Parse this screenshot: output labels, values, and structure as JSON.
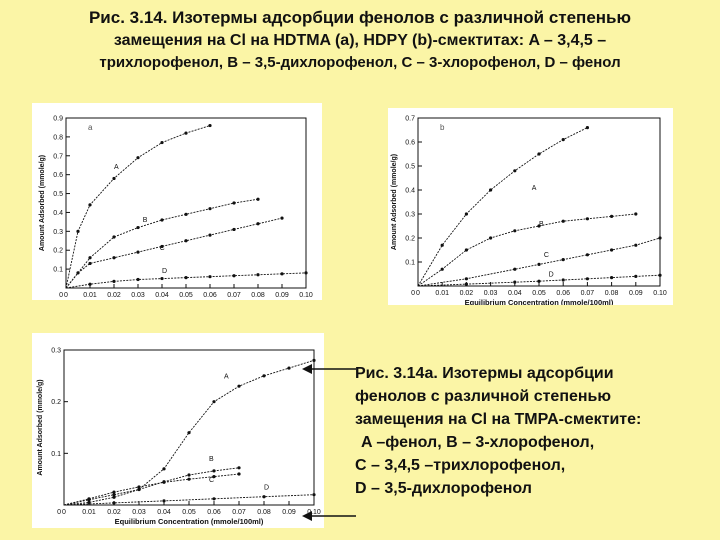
{
  "title": {
    "line1": "Рис. 3.14. Изотермы адсорбции фенолов с различной степенью",
    "line2": "замещения на Cl на HDTMA (a), HDPY (b)-смектитах: A – 3,4,5 –",
    "line3": "трихлорофенол, B – 3,5-дихлорофенол, C – 3-хлорофенол, D – фенол"
  },
  "caption": {
    "line1": "Рис. 3.14а. Изотермы адсорбции",
    "line2": "фенолов с различной степенью",
    "line3": "замещения на Cl на TMPA-смектите:",
    "line4": "A –фенол, B – 3-хлорофенол,",
    "line5": "C – 3,4,5 –трихлорофенол,",
    "line6": "D – 3,5-дихлорофенол"
  },
  "colors": {
    "background": "#fbf5a6",
    "panel": "#ffffff",
    "ink": "#111111"
  },
  "chart_data": [
    {
      "id": "a",
      "type": "line",
      "panel_label": "a",
      "xlabel": "Equilibrium Concentration (mmole/100ml)",
      "ylabel": "Amount Adsorbed (mmole/g)",
      "xlim": [
        0,
        0.1
      ],
      "ylim": [
        0,
        0.9
      ],
      "x_ticks": [
        "0",
        "0.01",
        "0.02",
        "0.03",
        "0.04",
        "0.05",
        "0.06",
        "0.07",
        "0.08",
        "0.09",
        "0.10"
      ],
      "y_ticks": [
        "0.1",
        "0.2",
        "0.3",
        "0.4",
        "0.5",
        "0.6",
        "0.7",
        "0.8",
        "0.9"
      ],
      "grid": false,
      "series": [
        {
          "name": "A",
          "x": [
            0,
            0.005,
            0.01,
            0.02,
            0.03,
            0.04,
            0.05,
            0.06
          ],
          "y": [
            0,
            0.3,
            0.44,
            0.58,
            0.69,
            0.77,
            0.82,
            0.86
          ],
          "label_at": [
            0.02,
            0.63
          ]
        },
        {
          "name": "B",
          "x": [
            0,
            0.01,
            0.02,
            0.03,
            0.04,
            0.05,
            0.06,
            0.07,
            0.08
          ],
          "y": [
            0,
            0.16,
            0.27,
            0.32,
            0.36,
            0.39,
            0.42,
            0.45,
            0.47
          ],
          "label_at": [
            0.032,
            0.35
          ]
        },
        {
          "name": "C",
          "x": [
            0,
            0.005,
            0.01,
            0.02,
            0.03,
            0.04,
            0.05,
            0.06,
            0.07,
            0.08,
            0.09
          ],
          "y": [
            0,
            0.08,
            0.13,
            0.16,
            0.19,
            0.22,
            0.25,
            0.28,
            0.31,
            0.34,
            0.37
          ],
          "label_at": [
            0.039,
            0.2
          ]
        },
        {
          "name": "D",
          "x": [
            0,
            0.01,
            0.02,
            0.03,
            0.04,
            0.05,
            0.06,
            0.07,
            0.08,
            0.09,
            0.1
          ],
          "y": [
            0,
            0.02,
            0.035,
            0.045,
            0.05,
            0.055,
            0.06,
            0.065,
            0.07,
            0.075,
            0.08
          ],
          "label_at": [
            0.04,
            0.08
          ]
        }
      ]
    },
    {
      "id": "b",
      "type": "line",
      "panel_label": "b",
      "xlabel": "Equilibrium Concentration (mmole/100ml)",
      "ylabel": "Amount Adsorbed (mmole/g)",
      "xlim": [
        0,
        0.1
      ],
      "ylim": [
        0,
        0.7
      ],
      "x_ticks": [
        "0",
        "0.01",
        "0.02",
        "0.03",
        "0.04",
        "0.05",
        "0.06",
        "0.07",
        "0.08",
        "0.09",
        "0.10"
      ],
      "y_ticks": [
        "0.1",
        "0.2",
        "0.3",
        "0.4",
        "0.5",
        "0.6",
        "0.7"
      ],
      "grid": false,
      "series": [
        {
          "name": "A",
          "x": [
            0,
            0.01,
            0.02,
            0.03,
            0.04,
            0.05,
            0.06,
            0.07
          ],
          "y": [
            0,
            0.17,
            0.3,
            0.4,
            0.48,
            0.55,
            0.61,
            0.66
          ],
          "label_at": [
            0.047,
            0.4
          ]
        },
        {
          "name": "B",
          "x": [
            0,
            0.01,
            0.02,
            0.03,
            0.04,
            0.05,
            0.06,
            0.07,
            0.08,
            0.09
          ],
          "y": [
            0,
            0.07,
            0.15,
            0.2,
            0.23,
            0.25,
            0.27,
            0.28,
            0.29,
            0.3
          ],
          "label_at": [
            0.05,
            0.25
          ]
        },
        {
          "name": "C",
          "x": [
            0,
            0.02,
            0.04,
            0.05,
            0.06,
            0.07,
            0.08,
            0.09,
            0.1
          ],
          "y": [
            0,
            0.03,
            0.07,
            0.09,
            0.11,
            0.13,
            0.15,
            0.17,
            0.2
          ],
          "label_at": [
            0.052,
            0.12
          ]
        },
        {
          "name": "D",
          "x": [
            0,
            0.02,
            0.04,
            0.05,
            0.06,
            0.07,
            0.08,
            0.09,
            0.1
          ],
          "y": [
            0,
            0.008,
            0.016,
            0.02,
            0.025,
            0.03,
            0.035,
            0.04,
            0.045
          ],
          "label_at": [
            0.054,
            0.04
          ]
        }
      ]
    },
    {
      "id": "c",
      "type": "line",
      "panel_label": "",
      "xlabel": "Equilibrium Concentration (mmole/100ml)",
      "ylabel": "Amount Adsorbed (mmole/g)",
      "xlim": [
        0,
        0.1
      ],
      "ylim": [
        0,
        0.3
      ],
      "x_ticks": [
        "0",
        "0.01",
        "0.02",
        "0.03",
        "0.04",
        "0.05",
        "0.06",
        "0.07",
        "0.08",
        "0.09",
        "0.10"
      ],
      "y_ticks": [
        "0.1",
        "0.2",
        "0.3"
      ],
      "grid": false,
      "series": [
        {
          "name": "A",
          "x": [
            0,
            0.01,
            0.02,
            0.03,
            0.04,
            0.05,
            0.06,
            0.07,
            0.08,
            0.09,
            0.1
          ],
          "y": [
            0,
            0.005,
            0.015,
            0.03,
            0.07,
            0.14,
            0.2,
            0.23,
            0.25,
            0.265,
            0.28
          ],
          "label_at": [
            0.064,
            0.245
          ]
        },
        {
          "name": "B",
          "x": [
            0,
            0.01,
            0.02,
            0.03,
            0.04,
            0.05,
            0.06,
            0.07
          ],
          "y": [
            0,
            0.01,
            0.02,
            0.03,
            0.045,
            0.058,
            0.066,
            0.072
          ],
          "label_at": [
            0.058,
            0.085
          ]
        },
        {
          "name": "C",
          "x": [
            0,
            0.01,
            0.02,
            0.03,
            0.04,
            0.05,
            0.06,
            0.07
          ],
          "y": [
            0,
            0.012,
            0.025,
            0.035,
            0.044,
            0.05,
            0.055,
            0.06
          ],
          "label_at": [
            0.058,
            0.045
          ]
        },
        {
          "name": "D",
          "x": [
            0,
            0.02,
            0.04,
            0.06,
            0.08,
            0.1
          ],
          "y": [
            0,
            0.004,
            0.008,
            0.012,
            0.016,
            0.02
          ],
          "label_at": [
            0.08,
            0.03
          ]
        }
      ]
    }
  ]
}
